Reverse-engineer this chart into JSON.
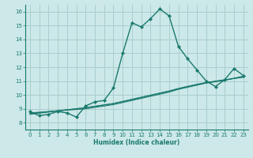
{
  "xlabel": "Humidex (Indice chaleur)",
  "xlim": [
    -0.5,
    23.5
  ],
  "ylim": [
    7.5,
    16.5
  ],
  "xticks": [
    0,
    1,
    2,
    3,
    4,
    5,
    6,
    7,
    8,
    9,
    10,
    11,
    12,
    13,
    14,
    15,
    16,
    17,
    18,
    19,
    20,
    21,
    22,
    23
  ],
  "yticks": [
    8,
    9,
    10,
    11,
    12,
    13,
    14,
    15,
    16
  ],
  "background_color": "#cce8e8",
  "grid_color": "#aacece",
  "line_color": "#1a7a6e",
  "main_series": [
    8.8,
    8.5,
    8.6,
    8.8,
    8.7,
    8.4,
    9.2,
    9.5,
    9.6,
    10.5,
    13.0,
    15.2,
    14.9,
    15.5,
    16.2,
    15.7,
    13.5,
    12.6,
    11.8,
    11.0,
    10.6,
    11.1,
    11.9,
    11.4
  ],
  "trend_series": [
    [
      8.7,
      8.75,
      8.8,
      8.85,
      8.9,
      8.95,
      9.0,
      9.1,
      9.2,
      9.3,
      9.45,
      9.6,
      9.75,
      9.9,
      10.05,
      10.2,
      10.4,
      10.55,
      10.7,
      10.85,
      10.95,
      11.05,
      11.2,
      11.35
    ],
    [
      8.65,
      8.72,
      8.79,
      8.86,
      8.93,
      9.0,
      9.07,
      9.17,
      9.27,
      9.37,
      9.52,
      9.67,
      9.82,
      9.97,
      10.12,
      10.27,
      10.45,
      10.6,
      10.75,
      10.88,
      10.98,
      11.08,
      11.18,
      11.28
    ],
    [
      8.6,
      8.68,
      8.76,
      8.84,
      8.92,
      9.0,
      9.08,
      9.18,
      9.28,
      9.38,
      9.53,
      9.68,
      9.83,
      9.98,
      10.13,
      10.28,
      10.46,
      10.61,
      10.76,
      10.89,
      10.99,
      11.09,
      11.19,
      11.29
    ]
  ]
}
